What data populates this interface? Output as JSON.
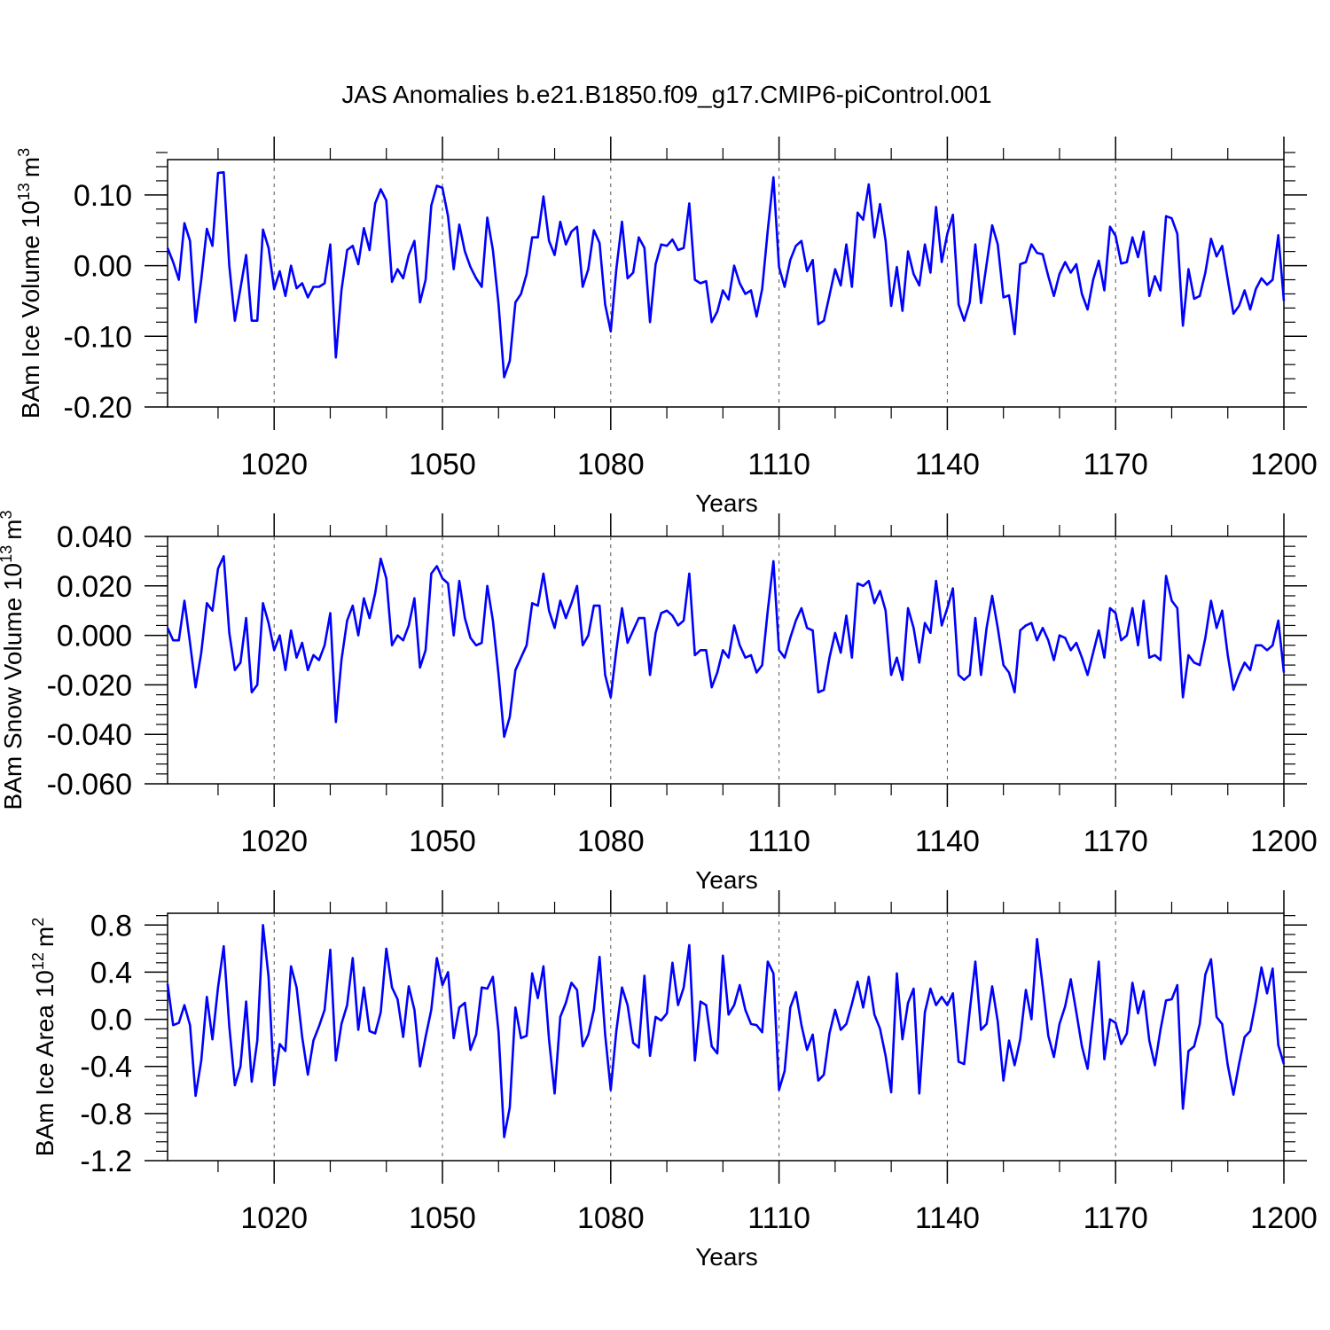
{
  "figure_title": "JAS Anomalies b.e21.B1850.f09_g17.CMIP6-piControl.001",
  "colors": {
    "line": "#0000ff",
    "axis": "#000000",
    "grid": "#555555"
  },
  "chart_data": [
    {
      "type": "line",
      "title": "JAS Anomalies b.e21.B1850.f09_g17.CMIP6-piControl.001",
      "xlabel": "Years",
      "ylabel": {
        "text": "BAm Ice Volume 10",
        "exponent": "13",
        "unit": "m",
        "unit_exponent": "3"
      },
      "xlim": [
        1001,
        1200
      ],
      "ylim": [
        -0.2,
        0.15
      ],
      "x_ticks": [
        1020,
        1050,
        1080,
        1110,
        1140,
        1170,
        1200
      ],
      "x_tick_labels": [
        "1020",
        "1050",
        "1080",
        "1110",
        "1140",
        "1170",
        "1200"
      ],
      "y_ticks": [
        0.1,
        0.0,
        -0.1,
        -0.2
      ],
      "y_tick_labels": [
        "0.10",
        "0.00",
        "-0.10",
        "-0.20"
      ],
      "x_start": 1001,
      "values": [
        0.025,
        0.005,
        -0.02,
        0.06,
        0.035,
        -0.08,
        -0.02,
        0.052,
        0.028,
        0.131,
        0.132,
        0.0,
        -0.078,
        -0.032,
        0.015,
        -0.078,
        -0.078,
        0.051,
        0.025,
        -0.033,
        -0.008,
        -0.043,
        0.0,
        -0.032,
        -0.025,
        -0.045,
        -0.03,
        -0.03,
        -0.025,
        0.03,
        -0.13,
        -0.035,
        0.022,
        0.028,
        0.002,
        0.053,
        0.022,
        0.088,
        0.108,
        0.092,
        -0.023,
        -0.005,
        -0.018,
        0.015,
        0.035,
        -0.052,
        -0.02,
        0.085,
        0.113,
        0.11,
        0.07,
        -0.005,
        0.058,
        0.02,
        -0.002,
        -0.018,
        -0.03,
        0.068,
        0.022,
        -0.055,
        -0.158,
        -0.135,
        -0.052,
        -0.04,
        -0.012,
        0.04,
        0.04,
        0.098,
        0.035,
        0.015,
        0.062,
        0.03,
        0.048,
        0.055,
        -0.03,
        -0.005,
        0.05,
        0.032,
        -0.055,
        -0.093,
        -0.005,
        0.062,
        -0.018,
        -0.01,
        0.04,
        0.025,
        -0.08,
        0.002,
        0.03,
        0.028,
        0.037,
        0.022,
        0.025,
        0.088,
        -0.02,
        -0.025,
        -0.022,
        -0.08,
        -0.065,
        -0.035,
        -0.048,
        0.0,
        -0.025,
        -0.04,
        -0.035,
        -0.072,
        -0.033,
        0.05,
        0.125,
        -0.002,
        -0.03,
        0.008,
        0.028,
        0.035,
        -0.008,
        0.008,
        -0.083,
        -0.078,
        -0.042,
        -0.005,
        -0.028,
        0.03,
        -0.03,
        0.075,
        0.065,
        0.115,
        0.04,
        0.087,
        0.035,
        -0.057,
        -0.002,
        -0.064,
        0.02,
        -0.012,
        -0.028,
        0.03,
        -0.01,
        0.083,
        0.005,
        0.045,
        0.072,
        -0.055,
        -0.078,
        -0.052,
        0.03,
        -0.053,
        0.002,
        0.057,
        0.03,
        -0.045,
        -0.042,
        -0.097,
        0.002,
        0.005,
        0.03,
        0.018,
        0.016,
        -0.015,
        -0.043,
        -0.012,
        0.005,
        -0.01,
        0.002,
        -0.04,
        -0.062,
        -0.02,
        0.007,
        -0.035,
        0.055,
        0.042,
        0.003,
        0.005,
        0.04,
        0.012,
        0.048,
        -0.043,
        -0.015,
        -0.035,
        0.07,
        0.067,
        0.045,
        -0.085,
        -0.005,
        -0.047,
        -0.043,
        -0.01,
        0.038,
        0.013,
        0.028,
        -0.02,
        -0.068,
        -0.057,
        -0.035,
        -0.062,
        -0.033,
        -0.018,
        -0.027,
        -0.02,
        0.043,
        -0.05
      ]
    },
    {
      "type": "line",
      "xlabel": "Years",
      "ylabel": {
        "text": "BAm Snow Volume 10",
        "exponent": "13",
        "unit": "m",
        "unit_exponent": "3"
      },
      "xlim": [
        1001,
        1200
      ],
      "ylim": [
        -0.06,
        0.04
      ],
      "x_ticks": [
        1020,
        1050,
        1080,
        1110,
        1140,
        1170,
        1200
      ],
      "x_tick_labels": [
        "1020",
        "1050",
        "1080",
        "1110",
        "1140",
        "1170",
        "1200"
      ],
      "y_ticks": [
        0.04,
        0.02,
        0.0,
        -0.02,
        -0.04,
        -0.06
      ],
      "y_tick_labels": [
        "0.040",
        "0.020",
        "0.000",
        "-0.020",
        "-0.040",
        "-0.060"
      ],
      "x_start": 1001,
      "values": [
        0.003,
        -0.002,
        -0.002,
        0.014,
        -0.003,
        -0.021,
        -0.007,
        0.013,
        0.01,
        0.027,
        0.032,
        0.001,
        -0.014,
        -0.011,
        0.007,
        -0.023,
        -0.02,
        0.013,
        0.005,
        -0.006,
        0.0,
        -0.014,
        0.002,
        -0.009,
        -0.003,
        -0.014,
        -0.008,
        -0.01,
        -0.004,
        0.009,
        -0.035,
        -0.01,
        0.006,
        0.012,
        0.0,
        0.015,
        0.007,
        0.017,
        0.031,
        0.023,
        -0.004,
        0.0,
        -0.002,
        0.004,
        0.015,
        -0.013,
        -0.006,
        0.025,
        0.028,
        0.023,
        0.021,
        0.0,
        0.022,
        0.007,
        -0.001,
        -0.004,
        -0.003,
        0.02,
        0.006,
        -0.016,
        -0.041,
        -0.033,
        -0.014,
        -0.009,
        -0.004,
        0.013,
        0.012,
        0.025,
        0.01,
        0.003,
        0.014,
        0.007,
        0.013,
        0.02,
        -0.004,
        0.0,
        0.012,
        0.012,
        -0.016,
        -0.025,
        -0.006,
        0.011,
        -0.003,
        0.002,
        0.007,
        0.007,
        -0.016,
        0.001,
        0.009,
        0.01,
        0.008,
        0.004,
        0.006,
        0.025,
        -0.008,
        -0.006,
        -0.006,
        -0.021,
        -0.015,
        -0.006,
        -0.009,
        0.004,
        -0.004,
        -0.009,
        -0.008,
        -0.015,
        -0.012,
        0.01,
        0.03,
        -0.006,
        -0.009,
        -0.001,
        0.006,
        0.011,
        0.003,
        0.002,
        -0.023,
        -0.022,
        -0.009,
        0.001,
        -0.007,
        0.008,
        -0.009,
        0.021,
        0.02,
        0.022,
        0.013,
        0.018,
        0.01,
        -0.016,
        -0.009,
        -0.018,
        0.011,
        0.003,
        -0.011,
        0.005,
        0.001,
        0.022,
        0.004,
        0.011,
        0.019,
        -0.016,
        -0.018,
        -0.016,
        0.007,
        -0.016,
        0.003,
        0.016,
        0.003,
        -0.012,
        -0.015,
        -0.023,
        0.002,
        0.004,
        0.005,
        -0.002,
        0.003,
        -0.002,
        -0.01,
        0.0,
        -0.001,
        -0.006,
        -0.003,
        -0.009,
        -0.016,
        -0.007,
        0.002,
        -0.009,
        0.011,
        0.009,
        -0.002,
        0.0,
        0.011,
        -0.004,
        0.014,
        -0.009,
        -0.008,
        -0.01,
        0.024,
        0.014,
        0.011,
        -0.025,
        -0.008,
        -0.011,
        -0.012,
        -0.001,
        0.014,
        0.003,
        0.01,
        -0.008,
        -0.022,
        -0.016,
        -0.011,
        -0.014,
        -0.004,
        -0.004,
        -0.006,
        -0.004,
        0.006,
        -0.015
      ]
    },
    {
      "type": "line",
      "xlabel": "Years",
      "ylabel": {
        "text": "BAm Ice Area 10",
        "exponent": "12",
        "unit": "m",
        "unit_exponent": "2"
      },
      "xlim": [
        1001,
        1200
      ],
      "ylim": [
        -1.2,
        0.9
      ],
      "x_ticks": [
        1020,
        1050,
        1080,
        1110,
        1140,
        1170,
        1200
      ],
      "x_tick_labels": [
        "1020",
        "1050",
        "1080",
        "1110",
        "1140",
        "1170",
        "1200"
      ],
      "y_ticks": [
        0.8,
        0.4,
        0.0,
        -0.4,
        -0.8,
        -1.2
      ],
      "y_tick_labels": [
        "0.8",
        "0.4",
        "0.0",
        "-0.4",
        "-0.8",
        "-1.2"
      ],
      "x_start": 1001,
      "values": [
        0.3,
        -0.05,
        -0.03,
        0.12,
        -0.05,
        -0.65,
        -0.35,
        0.19,
        -0.17,
        0.27,
        0.62,
        -0.06,
        -0.56,
        -0.4,
        0.15,
        -0.53,
        -0.18,
        0.8,
        0.36,
        -0.56,
        -0.21,
        -0.27,
        0.45,
        0.27,
        -0.15,
        -0.47,
        -0.18,
        -0.06,
        0.08,
        0.59,
        -0.35,
        -0.04,
        0.12,
        0.52,
        -0.09,
        0.27,
        -0.1,
        -0.12,
        0.06,
        0.6,
        0.27,
        0.17,
        -0.15,
        0.28,
        0.08,
        -0.4,
        -0.15,
        0.08,
        0.52,
        0.29,
        0.4,
        -0.16,
        0.1,
        0.14,
        -0.26,
        -0.13,
        0.27,
        0.26,
        0.36,
        -0.11,
        -1.0,
        -0.75,
        0.1,
        -0.16,
        -0.14,
        0.39,
        0.18,
        0.45,
        -0.17,
        -0.63,
        0.02,
        0.14,
        0.31,
        0.25,
        -0.23,
        -0.13,
        0.08,
        0.53,
        -0.13,
        -0.6,
        -0.1,
        0.27,
        0.12,
        -0.2,
        -0.24,
        0.37,
        -0.31,
        0.02,
        -0.01,
        0.05,
        0.48,
        0.12,
        0.27,
        0.63,
        -0.35,
        0.15,
        0.12,
        -0.23,
        -0.29,
        0.54,
        0.04,
        0.12,
        0.29,
        0.08,
        -0.04,
        -0.05,
        -0.11,
        0.49,
        0.39,
        -0.6,
        -0.44,
        0.1,
        0.23,
        -0.05,
        -0.26,
        -0.13,
        -0.52,
        -0.47,
        -0.12,
        0.08,
        -0.09,
        -0.04,
        0.13,
        0.32,
        0.1,
        0.36,
        0.04,
        -0.08,
        -0.31,
        -0.62,
        0.39,
        -0.17,
        0.14,
        0.26,
        -0.63,
        0.06,
        0.26,
        0.12,
        0.19,
        0.12,
        0.22,
        -0.36,
        -0.38,
        0.07,
        0.49,
        -0.09,
        -0.04,
        0.28,
        -0.02,
        -0.52,
        -0.18,
        -0.39,
        -0.17,
        0.25,
        0.0,
        0.68,
        0.28,
        -0.14,
        -0.32,
        -0.04,
        0.11,
        0.34,
        0.06,
        -0.23,
        -0.42,
        0.02,
        0.49,
        -0.34,
        0.0,
        -0.03,
        -0.21,
        -0.12,
        0.31,
        0.05,
        0.24,
        -0.18,
        -0.39,
        -0.09,
        0.16,
        0.17,
        0.29,
        -0.76,
        -0.27,
        -0.23,
        -0.04,
        0.38,
        0.51,
        0.02,
        -0.04,
        -0.39,
        -0.64,
        -0.38,
        -0.15,
        -0.1,
        0.15,
        0.44,
        0.22,
        0.43,
        -0.22,
        -0.38
      ]
    }
  ]
}
